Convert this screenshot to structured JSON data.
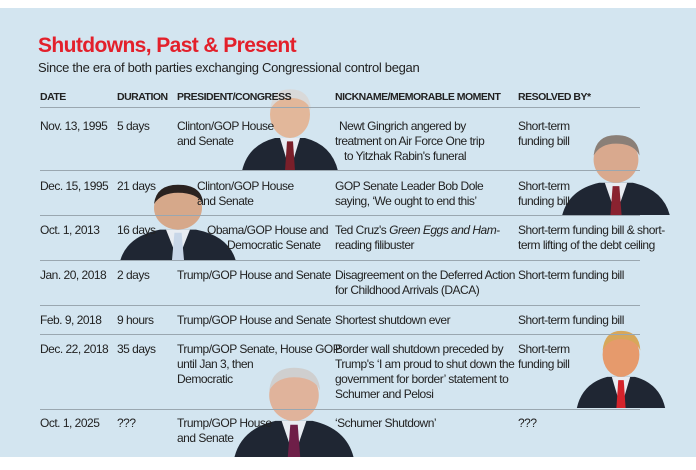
{
  "title": "Shutdowns, Past & Present",
  "subtitle": "Since the era of both parties exchanging Congressional control began",
  "columns": [
    "DATE",
    "DURATION",
    "PRESIDENT/CONGRESS",
    "NICKNAME/MEMORABLE MOMENT",
    "RESOLVED BY*"
  ],
  "rows": [
    {
      "date": "Nov. 13, 1995",
      "duration": "5 days",
      "president": [
        "Clinton/GOP House",
        "and Senate"
      ],
      "moment": [
        "Newt Gingrich angered by",
        "treatment on Air Force One trip",
        "to Yitzhak Rabin's funeral"
      ],
      "resolved": [
        "Short-term",
        "funding bill"
      ]
    },
    {
      "date": "Dec. 15, 1995",
      "duration": "21 days",
      "president": [
        "Clinton/GOP House",
        "and Senate"
      ],
      "moment": [
        "GOP Senate Leader Bob Dole",
        "saying, ‘We ought to end this’"
      ],
      "resolved": [
        "Short-term",
        "funding bill"
      ]
    },
    {
      "date": "Oct. 1, 2013",
      "duration": "16 days",
      "president": [
        "Obama/GOP House and",
        "Democratic Senate"
      ],
      "moment_prefix": "Ted Cruz's ",
      "moment_italic": "Green Eggs and Ham",
      "moment_suffix": "-",
      "moment_line2": "reading filibuster",
      "resolved": [
        "Short-term funding bill & short-",
        "term lifting of the debt ceiling"
      ]
    },
    {
      "date": "Jan. 20, 2018",
      "duration": "2 days",
      "president": [
        "Trump/GOP House and Senate"
      ],
      "moment": [
        "Disagreement on the Deferred Action",
        "for Childhood Arrivals (DACA)"
      ],
      "resolved": [
        "Short-term funding bill"
      ]
    },
    {
      "date": "Feb. 9, 2018",
      "duration": "9 hours",
      "president": [
        "Trump/GOP House and Senate"
      ],
      "moment": [
        "Shortest shutdown ever"
      ],
      "resolved": [
        "Short-term funding bill"
      ]
    },
    {
      "date": "Dec. 22, 2018",
      "duration": "35 days",
      "president": [
        "Trump/GOP Senate, House GOP",
        "until Jan 3, then",
        "Democratic"
      ],
      "moment": [
        "Border wall shutdown preceded by",
        "Trump's ‘I am proud to shut down the",
        "government for border’ statement to",
        "Schumer and Pelosi"
      ],
      "resolved": [
        "Short-term",
        "funding bill"
      ]
    },
    {
      "date": "Oct. 1, 2025",
      "duration": "???",
      "president": [
        "Trump/GOP House",
        "and Senate"
      ],
      "moment": [
        "‘Schumer Shutdown’"
      ],
      "resolved": [
        "???"
      ]
    }
  ],
  "colors": {
    "title": "#e3202b",
    "background": "#d3e5f0"
  }
}
